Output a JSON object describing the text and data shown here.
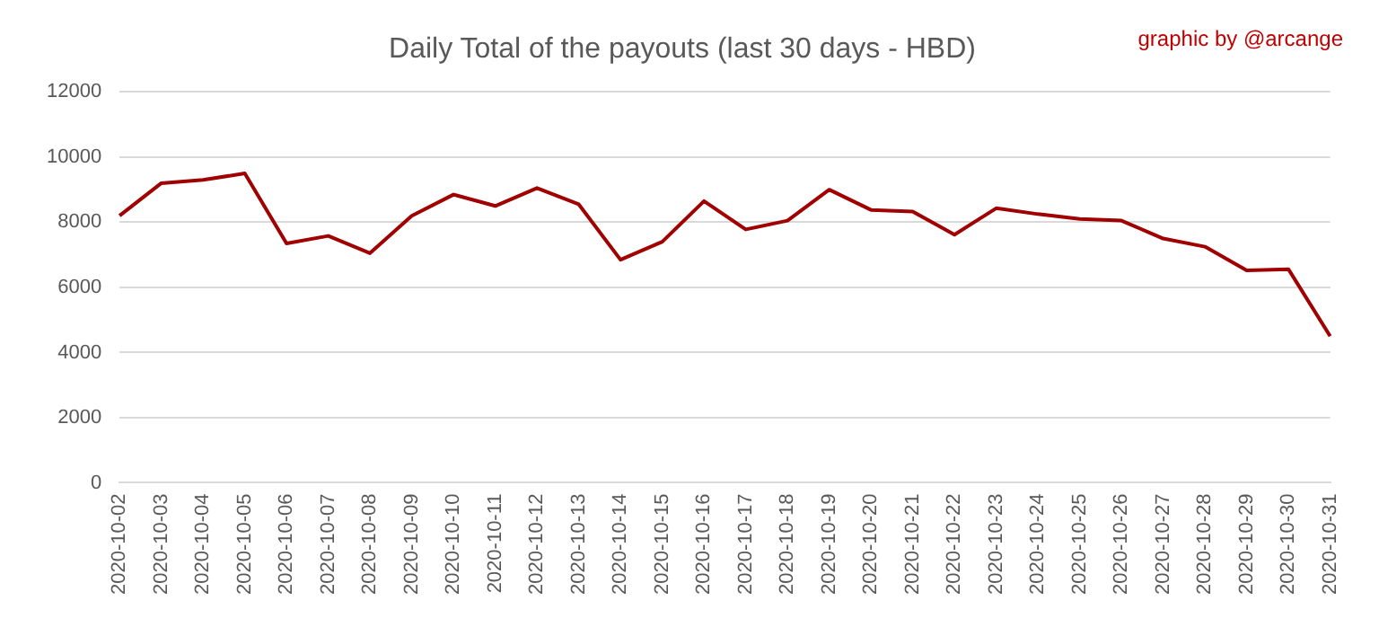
{
  "chart_data": {
    "type": "line",
    "title": "Daily Total of the payouts (last 30 days - HBD)",
    "annotations": [
      "graphic by @arcange"
    ],
    "categories": [
      "2020-10-02",
      "2020-10-03",
      "2020-10-04",
      "2020-10-05",
      "2020-10-06",
      "2020-10-07",
      "2020-10-08",
      "2020-10-09",
      "2020-10-10",
      "2020-10-11",
      "2020-10-12",
      "2020-10-13",
      "2020-10-14",
      "2020-10-15",
      "2020-10-16",
      "2020-10-17",
      "2020-10-18",
      "2020-10-19",
      "2020-10-20",
      "2020-10-21",
      "2020-10-22",
      "2020-10-23",
      "2020-10-24",
      "2020-10-25",
      "2020-10-26",
      "2020-10-27",
      "2020-10-28",
      "2020-10-29",
      "2020-10-30",
      "2020-10-31"
    ],
    "series": [
      {
        "color": "#a00000",
        "values": [
          8200,
          9200,
          9300,
          9500,
          7350,
          7580,
          7050,
          8200,
          8850,
          8500,
          9050,
          8550,
          6850,
          7400,
          8650,
          7780,
          8050,
          9000,
          8380,
          8330,
          7620,
          8430,
          8250,
          8100,
          8050,
          7500,
          7250,
          6520,
          6560,
          4500
        ]
      }
    ],
    "ylim": [
      0,
      12000
    ],
    "yticks": [
      0,
      2000,
      4000,
      6000,
      8000,
      10000,
      12000
    ],
    "grid": "y",
    "legend": false,
    "marker": "none",
    "line_style": "solid"
  }
}
